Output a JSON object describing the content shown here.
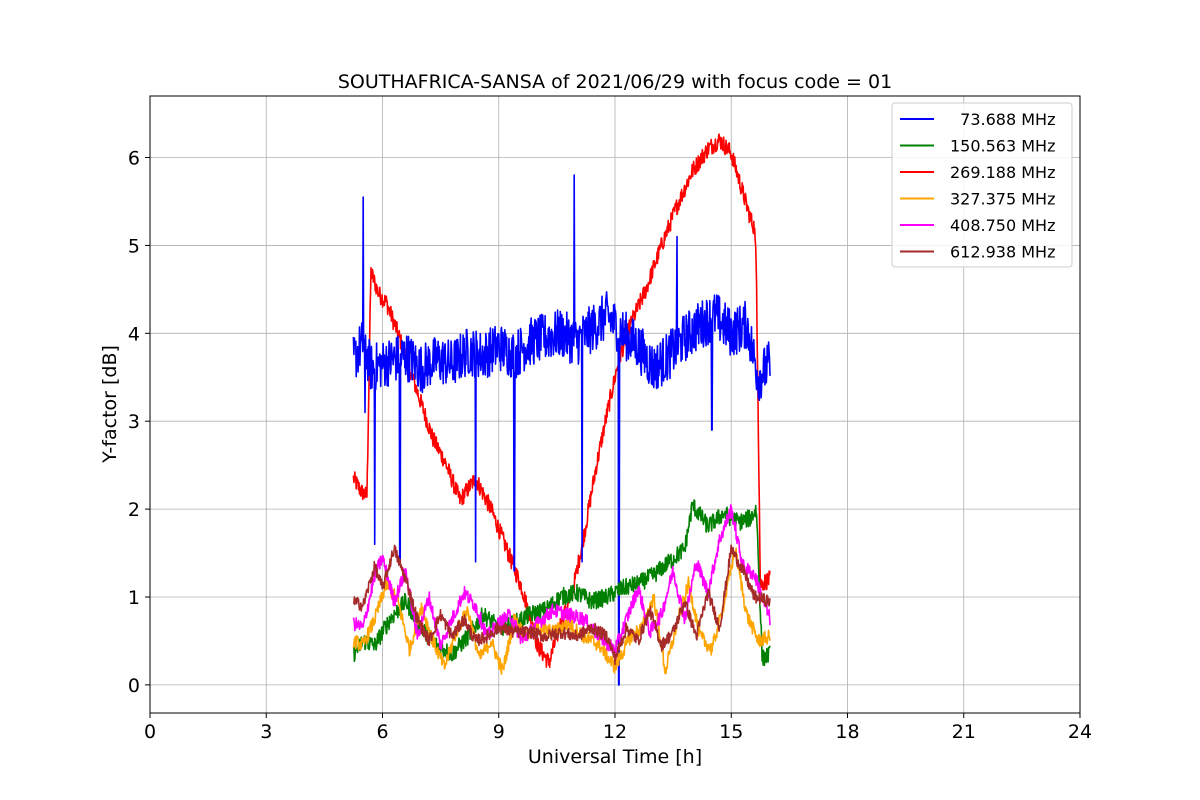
{
  "chart_data": {
    "type": "line",
    "title": "SOUTHAFRICA-SANSA of 2021/06/29 with focus code = 01",
    "xlabel": "Universal Time [h]",
    "ylabel": "Y-factor [dB]",
    "xlim": [
      0,
      24
    ],
    "ylim": [
      -0.32,
      6.7
    ],
    "xticks": [
      "0",
      "3",
      "6",
      "9",
      "12",
      "15",
      "18",
      "21",
      "24"
    ],
    "yticks": [
      "0",
      "1",
      "2",
      "3",
      "4",
      "5",
      "6"
    ],
    "grid": true,
    "legend_position": "top-right",
    "series": [
      {
        "name": "  73.688 MHz",
        "color": "#0000ff",
        "x": [
          5.25,
          5.5,
          5.7,
          6.0,
          6.3,
          6.6,
          7.0,
          7.4,
          7.8,
          8.2,
          8.6,
          9.0,
          9.4,
          9.8,
          10.2,
          10.6,
          11.0,
          11.4,
          11.8,
          12.2,
          12.6,
          13.0,
          13.4,
          13.8,
          14.2,
          14.6,
          15.0,
          15.4,
          15.7,
          16.0
        ],
        "y": [
          3.7,
          3.9,
          3.6,
          3.65,
          3.7,
          3.75,
          3.6,
          3.7,
          3.65,
          3.8,
          3.75,
          3.85,
          3.75,
          3.9,
          3.95,
          4.0,
          3.9,
          4.05,
          4.2,
          4.0,
          3.85,
          3.6,
          3.75,
          3.95,
          4.1,
          4.2,
          4.0,
          4.1,
          3.5,
          3.65
        ],
        "spikes": [
          {
            "x": 5.5,
            "y": 5.55
          },
          {
            "x": 5.55,
            "y": 3.1
          },
          {
            "x": 5.8,
            "y": 1.6
          },
          {
            "x": 6.45,
            "y": 1.4
          },
          {
            "x": 8.4,
            "y": 1.4
          },
          {
            "x": 9.4,
            "y": 1.3
          },
          {
            "x": 10.95,
            "y": 5.8
          },
          {
            "x": 11.15,
            "y": 1.4
          },
          {
            "x": 12.1,
            "y": 0.0
          },
          {
            "x": 13.6,
            "y": 5.1
          },
          {
            "x": 14.5,
            "y": 2.9
          }
        ]
      },
      {
        "name": "150.563 MHz",
        "color": "#008000",
        "x": [
          5.25,
          5.5,
          5.8,
          6.2,
          6.6,
          7.0,
          7.4,
          7.8,
          8.2,
          8.6,
          9.0,
          9.4,
          9.8,
          10.2,
          10.6,
          11.0,
          11.4,
          11.8,
          12.2,
          12.6,
          13.0,
          13.4,
          13.8,
          14.0,
          14.4,
          14.8,
          15.2,
          15.5,
          15.65,
          15.8,
          16.0
        ],
        "y": [
          0.35,
          0.5,
          0.45,
          0.75,
          0.95,
          0.65,
          0.45,
          0.35,
          0.55,
          0.8,
          0.65,
          0.7,
          0.8,
          0.85,
          1.0,
          1.05,
          0.95,
          1.0,
          1.1,
          1.15,
          1.25,
          1.4,
          1.55,
          2.05,
          1.8,
          1.95,
          1.85,
          1.9,
          2.0,
          0.3,
          0.35
        ]
      },
      {
        "name": "269.188 MHz",
        "color": "#ff0000",
        "x": [
          5.25,
          5.45,
          5.6,
          5.7,
          5.9,
          6.1,
          6.4,
          6.7,
          7.0,
          7.3,
          7.6,
          8.0,
          8.4,
          8.8,
          9.2,
          9.6,
          10.0,
          10.3,
          10.6,
          10.9,
          11.2,
          11.5,
          11.8,
          12.1,
          12.4,
          12.8,
          13.2,
          13.6,
          14.0,
          14.4,
          14.7,
          15.0,
          15.3,
          15.5,
          15.6,
          15.65,
          15.75,
          16.0
        ],
        "y": [
          2.35,
          2.2,
          2.15,
          4.7,
          4.45,
          4.35,
          4.0,
          3.6,
          3.2,
          2.8,
          2.55,
          2.1,
          2.35,
          2.0,
          1.55,
          1.1,
          0.45,
          0.25,
          0.7,
          1.05,
          1.7,
          2.45,
          3.1,
          3.7,
          4.1,
          4.5,
          5.0,
          5.45,
          5.85,
          6.1,
          6.2,
          6.05,
          5.6,
          5.3,
          5.2,
          4.7,
          1.15,
          1.2
        ]
      },
      {
        "name": "327.375 MHz",
        "color": "#ffa500",
        "x": [
          5.25,
          5.5,
          5.8,
          6.1,
          6.4,
          6.7,
          7.0,
          7.3,
          7.6,
          7.9,
          8.2,
          8.5,
          8.8,
          9.1,
          9.4,
          9.7,
          10.0,
          10.4,
          10.8,
          11.2,
          11.6,
          12.0,
          12.4,
          12.7,
          13.0,
          13.3,
          13.6,
          13.9,
          14.2,
          14.5,
          14.8,
          15.1,
          15.4,
          15.7,
          16.0
        ],
        "y": [
          0.5,
          0.45,
          0.75,
          1.15,
          0.95,
          0.4,
          0.9,
          0.5,
          0.2,
          0.6,
          0.85,
          0.3,
          0.5,
          0.15,
          0.75,
          0.55,
          0.65,
          0.6,
          0.7,
          0.55,
          0.45,
          0.2,
          0.55,
          0.65,
          1.0,
          0.15,
          0.7,
          1.15,
          0.55,
          0.4,
          0.9,
          1.55,
          0.8,
          0.5,
          0.55
        ]
      },
      {
        "name": "408.750 MHz",
        "color": "#ff00ff",
        "x": [
          5.25,
          5.5,
          5.8,
          6.0,
          6.3,
          6.6,
          6.9,
          7.2,
          7.5,
          7.8,
          8.1,
          8.4,
          8.7,
          9.0,
          9.3,
          9.6,
          10.0,
          10.4,
          10.8,
          11.2,
          11.6,
          12.0,
          12.3,
          12.6,
          12.9,
          13.2,
          13.5,
          13.8,
          14.1,
          14.4,
          14.7,
          15.0,
          15.3,
          15.6,
          16.0
        ],
        "y": [
          0.7,
          0.65,
          1.25,
          1.45,
          0.95,
          1.3,
          0.55,
          1.0,
          0.45,
          0.75,
          1.05,
          0.9,
          0.55,
          0.7,
          0.8,
          0.5,
          0.7,
          0.85,
          0.8,
          0.75,
          0.55,
          0.4,
          0.75,
          1.1,
          0.6,
          0.8,
          1.3,
          0.75,
          1.4,
          1.05,
          1.65,
          2.0,
          1.35,
          1.25,
          0.75
        ]
      },
      {
        "name": "612.938 MHz",
        "color": "#a52a2a",
        "x": [
          5.25,
          5.5,
          5.8,
          6.0,
          6.3,
          6.6,
          6.9,
          7.2,
          7.5,
          7.8,
          8.1,
          8.4,
          8.7,
          9.0,
          9.4,
          9.8,
          10.2,
          10.6,
          11.0,
          11.4,
          11.8,
          12.0,
          12.3,
          12.6,
          12.9,
          13.2,
          13.5,
          13.8,
          14.1,
          14.4,
          14.7,
          15.0,
          15.3,
          15.6,
          16.0
        ],
        "y": [
          0.95,
          0.9,
          1.35,
          1.1,
          1.55,
          1.2,
          0.75,
          0.5,
          0.8,
          0.55,
          0.75,
          0.5,
          0.55,
          0.65,
          0.6,
          0.6,
          0.55,
          0.6,
          0.55,
          0.65,
          0.55,
          0.3,
          0.65,
          0.5,
          0.85,
          0.45,
          0.6,
          0.95,
          0.55,
          1.05,
          0.65,
          1.55,
          1.3,
          1.0,
          0.95
        ]
      }
    ]
  }
}
